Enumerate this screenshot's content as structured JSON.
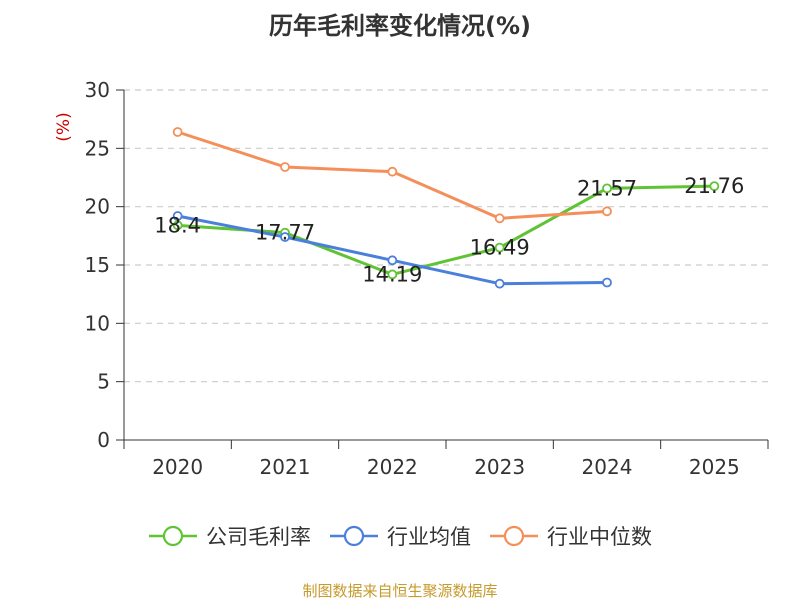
{
  "chart_data": {
    "type": "line",
    "title": "历年毛利率变化情况(%)",
    "ylabel": "(%)",
    "xlabel": "",
    "categories": [
      "2020",
      "2021",
      "2022",
      "2023",
      "2024",
      "2025"
    ],
    "ylim": [
      0,
      30
    ],
    "yticks": [
      0,
      5,
      10,
      15,
      20,
      25,
      30
    ],
    "grid": true,
    "legend_position": "bottom",
    "series": [
      {
        "name": "公司毛利率",
        "color": "#5fc334",
        "values": [
          18.4,
          17.77,
          14.19,
          16.49,
          21.57,
          21.76
        ],
        "labels": [
          "18.4",
          "17.77",
          "14.19",
          "16.49",
          "21.57",
          "21.76"
        ]
      },
      {
        "name": "行业均值",
        "color": "#4a7fdb",
        "values": [
          19.2,
          17.4,
          15.4,
          13.4,
          13.5,
          null
        ]
      },
      {
        "name": "行业中位数",
        "color": "#f58f5a",
        "values": [
          26.4,
          23.4,
          23.0,
          19.0,
          19.6,
          null
        ]
      }
    ],
    "source": "制图数据来自恒生聚源数据库"
  },
  "colors": {
    "ylabel": "#cc0000",
    "source": "#c79a2c",
    "axis": "#333333",
    "grid": "#cccccc"
  }
}
